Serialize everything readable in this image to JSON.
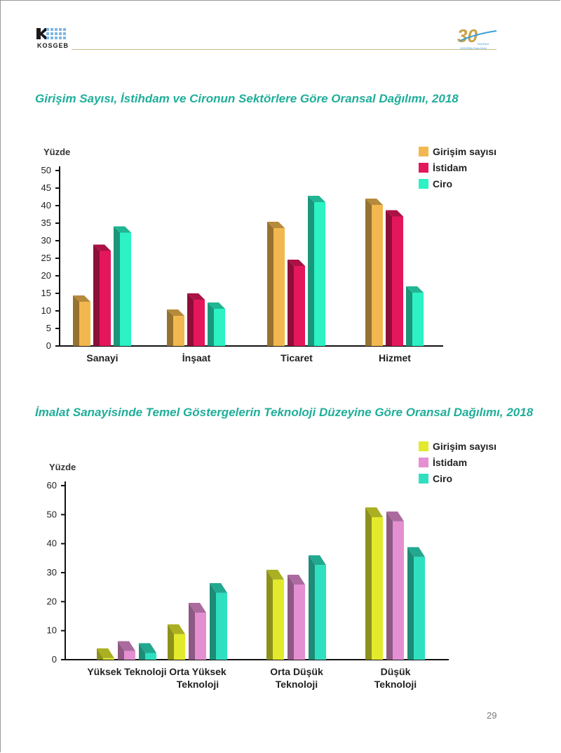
{
  "header": {
    "logo_text": "KOSGEB",
    "badge_number": "30",
    "badge_small_1": "YAŞINDA",
    "badge_small_2": "KOSGEB'te Daha Güçlü"
  },
  "page_number": "29",
  "colors": {
    "title": "#1fae9a",
    "girisim1": "#f2b84f",
    "istidam1": "#e4175c",
    "ciro1": "#2cf2c4",
    "girisim2": "#e3ea2c",
    "istidam2": "#e48fd2",
    "ciro2": "#2fe0c0"
  },
  "chart_data": [
    {
      "type": "bar",
      "title": "Girişim Sayısı, İstihdam ve Cironun Sektörlere Göre Oransal Dağılımı, 2018",
      "ylabel": "Yüzde",
      "xlabel": "",
      "ylim": [
        0,
        50
      ],
      "yticks": [
        0,
        5,
        10,
        15,
        20,
        25,
        30,
        35,
        40,
        45,
        50
      ],
      "categories": [
        "Sanayi",
        "İnşaat",
        "Ticaret",
        "Hizmet"
      ],
      "series": [
        {
          "name": "Girişim sayısı",
          "values": [
            12.6,
            8.6,
            33.6,
            40.2
          ]
        },
        {
          "name": "İstidam",
          "values": [
            27.1,
            13.2,
            22.8,
            36.9
          ]
        },
        {
          "name": "Ciro",
          "values": [
            32.3,
            10.6,
            41.0,
            15.2
          ]
        }
      ],
      "legend_position": "top-right",
      "grid": false
    },
    {
      "type": "bar",
      "title": "İmalat Sanayisinde Temel Göstergelerin Teknoloji Düzeyine Göre Oransal Dağılımı, 2018",
      "ylabel": "Yüzde",
      "xlabel": "",
      "ylim": [
        0,
        60
      ],
      "yticks": [
        0,
        10,
        20,
        30,
        40,
        50,
        60
      ],
      "categories": [
        "Yüksek Teknoloji",
        "Orta Yüksek Teknoloji",
        "Orta Düşük Teknoloji",
        "Düşük Teknoloji"
      ],
      "category_lines": [
        [
          "Yüksek Teknoloji"
        ],
        [
          "Orta Yüksek",
          "Teknoloji"
        ],
        [
          "Orta Düşük",
          "Teknoloji"
        ],
        [
          "Düşük",
          "Teknoloji"
        ]
      ],
      "series": [
        {
          "name": "Girişim sayısı",
          "values": [
            0.5,
            8.8,
            27.6,
            49.1
          ]
        },
        {
          "name": "İstidam",
          "values": [
            3.0,
            16.2,
            25.9,
            47.7
          ]
        },
        {
          "name": "Ciro",
          "values": [
            2.3,
            23.0,
            32.6,
            35.4
          ]
        }
      ],
      "legend_position": "top-right",
      "grid": false
    }
  ]
}
